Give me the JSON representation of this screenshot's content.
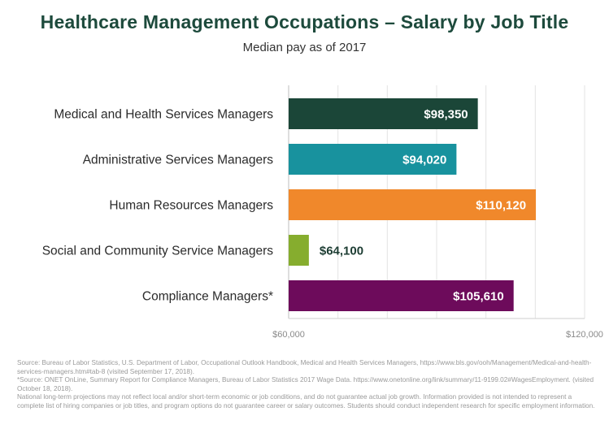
{
  "chart_data": {
    "type": "bar",
    "orientation": "horizontal",
    "title": "Healthcare Management Occupations – Salary by Job Title",
    "subtitle": "Median pay as of 2017",
    "categories": [
      "Medical and Health Services Managers",
      "Administrative Services Managers",
      "Human Resources Managers",
      "Social and Community Service Managers",
      "Compliance Managers*"
    ],
    "values": [
      98350,
      94020,
      110120,
      64100,
      105610
    ],
    "value_labels": [
      "$98,350",
      "$94,020",
      "$110,120",
      "$64,100",
      "$105,610"
    ],
    "colors": [
      "#1b4638",
      "#18929e",
      "#f0882b",
      "#86ad2e",
      "#6d0b5b"
    ],
    "xlim": [
      60000,
      120000
    ],
    "ticks": [
      60000,
      120000
    ],
    "tick_labels": [
      "$60,000",
      "$120,000"
    ],
    "grid": true
  },
  "footer": {
    "source1": "Source: Bureau of Labor Statistics, U.S. Department of Labor, Occupational Outlook Handbook, Medical and Health Services Managers, https://www.bls.gov/ooh/Management/Medical-and-health-services-managers.htm#tab-8 (visited September 17, 2018).",
    "source2": "*Source: ONET OnLine, Summary Report for Compliance Managers, Bureau of Labor Statistics 2017 Wage Data. https://www.onetonline.org/link/summary/11-9199.02#WagesEmployment. (visited October 18, 2018).",
    "disclaimer": "National long-term projections may not reflect local and/or short-term economic or job conditions, and do not guarantee actual job growth. Information provided is not intended to represent a complete list of hiring companies or job titles, and program options do not guarantee career or salary outcomes. Students should conduct independent research for specific employment information."
  }
}
